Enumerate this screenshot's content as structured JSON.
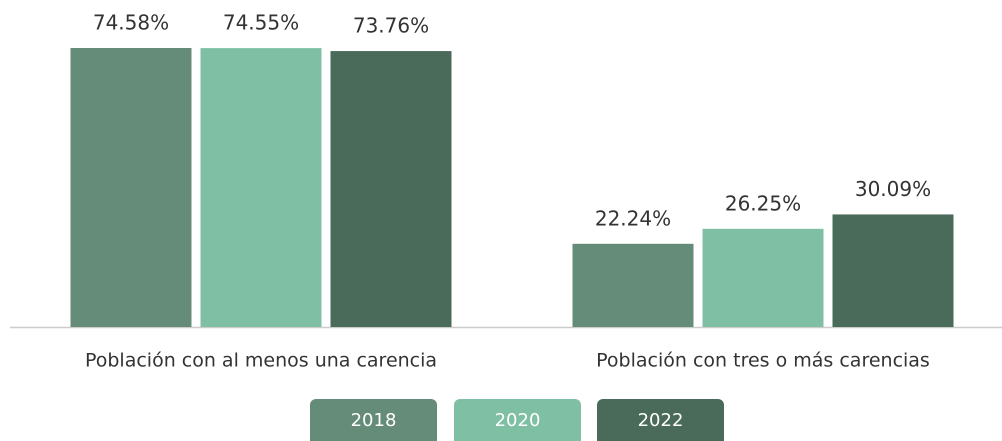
{
  "chart_data": {
    "type": "bar",
    "categories": [
      "Población con al menos una carencia",
      "Población con tres o más carencias"
    ],
    "series": [
      {
        "name": "2018",
        "color": "#648c79",
        "values": [
          74.58,
          22.24
        ],
        "value_labels": [
          "74.58%",
          "22.24%"
        ]
      },
      {
        "name": "2020",
        "color": "#7fbfa4",
        "values": [
          74.55,
          26.25
        ],
        "value_labels": [
          "74.55%",
          "26.25%"
        ]
      },
      {
        "name": "2022",
        "color": "#4a6b5a",
        "values": [
          73.76,
          30.09
        ],
        "value_labels": [
          "73.76%",
          "30.09%"
        ]
      }
    ]
  }
}
